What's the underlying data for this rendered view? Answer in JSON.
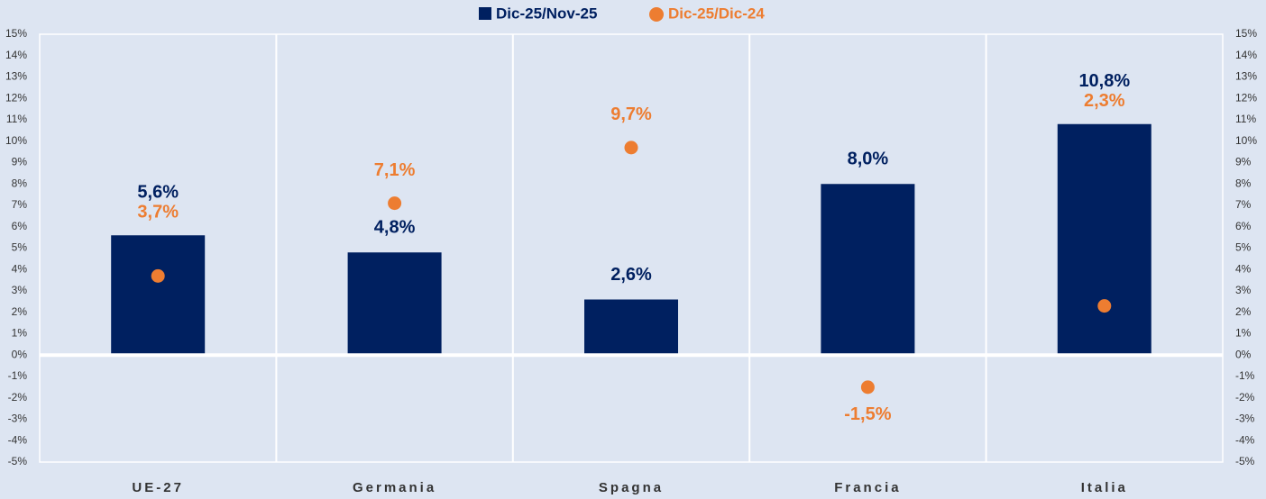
{
  "chart_data": {
    "type": "bar",
    "categories": [
      "UE-27",
      "Germania",
      "Spagna",
      "Francia",
      "Italia"
    ],
    "series": [
      {
        "name": "Dic-25/Nov-25",
        "type": "bar",
        "color": "#002060",
        "values": [
          5.6,
          4.8,
          2.6,
          8.0,
          10.8
        ],
        "value_labels": [
          "5,6%",
          "4,8%",
          "2,6%",
          "8,0%",
          "10,8%"
        ]
      },
      {
        "name": "Dic-25/Dic-24",
        "type": "scatter",
        "axis": "y2",
        "color": "#ed7d31",
        "values": [
          3.7,
          7.1,
          9.7,
          -1.5,
          2.3
        ],
        "value_labels": [
          "3,7%",
          "7,1%",
          "9,7%",
          "-1,5%",
          "2,3%"
        ]
      }
    ],
    "ylim": [
      -5,
      15
    ],
    "yticks": [
      {
        "value": -5,
        "label": "-5%"
      },
      {
        "value": -4,
        "label": "-4%"
      },
      {
        "value": -3,
        "label": "-3%"
      },
      {
        "value": -2,
        "label": "-2%"
      },
      {
        "value": -1,
        "label": "-1%"
      },
      {
        "value": 0,
        "label": "0%"
      },
      {
        "value": 1,
        "label": "1%"
      },
      {
        "value": 2,
        "label": "2%"
      },
      {
        "value": 3,
        "label": "3%"
      },
      {
        "value": 4,
        "label": "4%"
      },
      {
        "value": 5,
        "label": "5%"
      },
      {
        "value": 6,
        "label": "6%"
      },
      {
        "value": 7,
        "label": "7%"
      },
      {
        "value": 8,
        "label": "8%"
      },
      {
        "value": 9,
        "label": "9%"
      },
      {
        "value": 10,
        "label": "10%"
      },
      {
        "value": 11,
        "label": "11%"
      },
      {
        "value": 12,
        "label": "12%"
      },
      {
        "value": 13,
        "label": "13%"
      },
      {
        "value": 14,
        "label": "14%"
      },
      {
        "value": 15,
        "label": "15%"
      }
    ],
    "y2lim": [
      -5,
      15
    ],
    "y2ticks": [
      {
        "value": -5,
        "label": "-5%"
      },
      {
        "value": -4,
        "label": "-4%"
      },
      {
        "value": -3,
        "label": "-3%"
      },
      {
        "value": -2,
        "label": "-2%"
      },
      {
        "value": -1,
        "label": "-1%"
      },
      {
        "value": 0,
        "label": "0%"
      },
      {
        "value": 1,
        "label": "1%"
      },
      {
        "value": 2,
        "label": "2%"
      },
      {
        "value": 3,
        "label": "3%"
      },
      {
        "value": 4,
        "label": "4%"
      },
      {
        "value": 5,
        "label": "5%"
      },
      {
        "value": 6,
        "label": "6%"
      },
      {
        "value": 7,
        "label": "7%"
      },
      {
        "value": 8,
        "label": "8%"
      },
      {
        "value": 9,
        "label": "9%"
      },
      {
        "value": 10,
        "label": "10%"
      },
      {
        "value": 11,
        "label": "11%"
      },
      {
        "value": 12,
        "label": "12%"
      },
      {
        "value": 13,
        "label": "13%"
      },
      {
        "value": 14,
        "label": "14%"
      },
      {
        "value": 15,
        "label": "15%"
      }
    ],
    "legend": "top",
    "grid": false
  }
}
